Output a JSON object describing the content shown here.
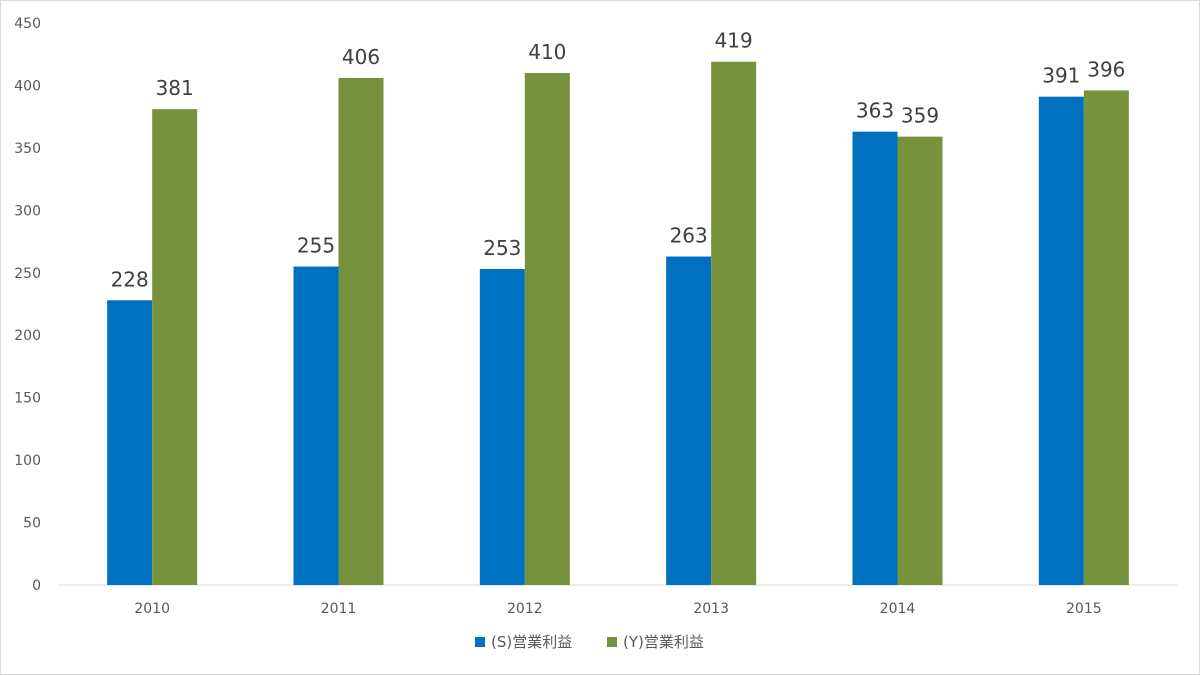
{
  "chart_data": {
    "type": "bar",
    "title": "",
    "xlabel": "",
    "ylabel": "",
    "categories": [
      "2010",
      "2011",
      "2012",
      "2013",
      "2014",
      "2015"
    ],
    "series": [
      {
        "name": "(S)営業利益",
        "color": "#0070C0",
        "values": [
          228,
          255,
          253,
          263,
          363,
          391
        ]
      },
      {
        "name": "(Y)営業利益",
        "color": "#76923C",
        "values": [
          381,
          406,
          410,
          419,
          359,
          396
        ]
      }
    ],
    "ylim": [
      0,
      450
    ],
    "yticks": [
      0,
      50,
      100,
      150,
      200,
      250,
      300,
      350,
      400,
      450
    ],
    "grid": false,
    "legend": "bottom",
    "data_labels": true
  }
}
